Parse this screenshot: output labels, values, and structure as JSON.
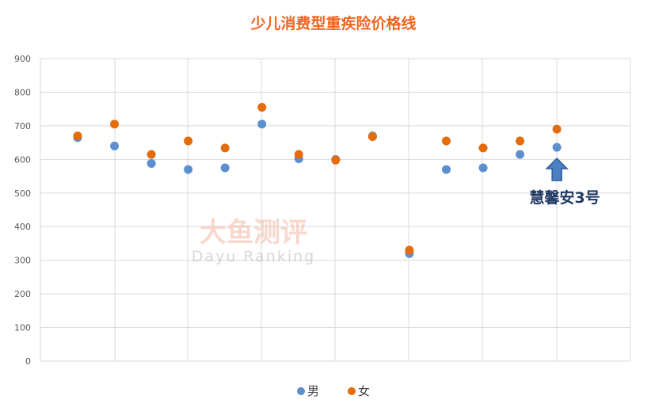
{
  "colors": {
    "male": "#5b8fcd",
    "female": "#e46c0a",
    "title": "#f0641e",
    "annotation": "#1f3864",
    "grid": "#d9d9d9",
    "arrow": "#4a7fc0"
  },
  "chart_data": {
    "type": "scatter",
    "title": "少儿消费型重疾险价格线",
    "xlabel": "",
    "ylabel": "",
    "ylim": [
      0,
      900
    ],
    "yticks": [
      "900",
      "800",
      "700",
      "600",
      "500",
      "400",
      "300",
      "200",
      "100",
      "0"
    ],
    "grid": true,
    "legend_position": "bottom",
    "x": [
      1,
      2,
      3,
      4,
      5,
      6,
      7,
      8,
      9,
      10,
      11,
      12,
      13,
      14
    ],
    "series": [
      {
        "name": "男",
        "values": [
          665,
          640,
          588,
          570,
          575,
          705,
          602,
          600,
          670,
          320,
          570,
          575,
          615,
          636
        ]
      },
      {
        "name": "女",
        "values": [
          670,
          705,
          615,
          655,
          634,
          755,
          615,
          598,
          668,
          330,
          655,
          634,
          655,
          690
        ]
      }
    ],
    "annotation": {
      "text": "慧馨安3号",
      "x": 14
    }
  },
  "watermark": {
    "cn": "大鱼测评",
    "en": "Dayu Ranking"
  }
}
